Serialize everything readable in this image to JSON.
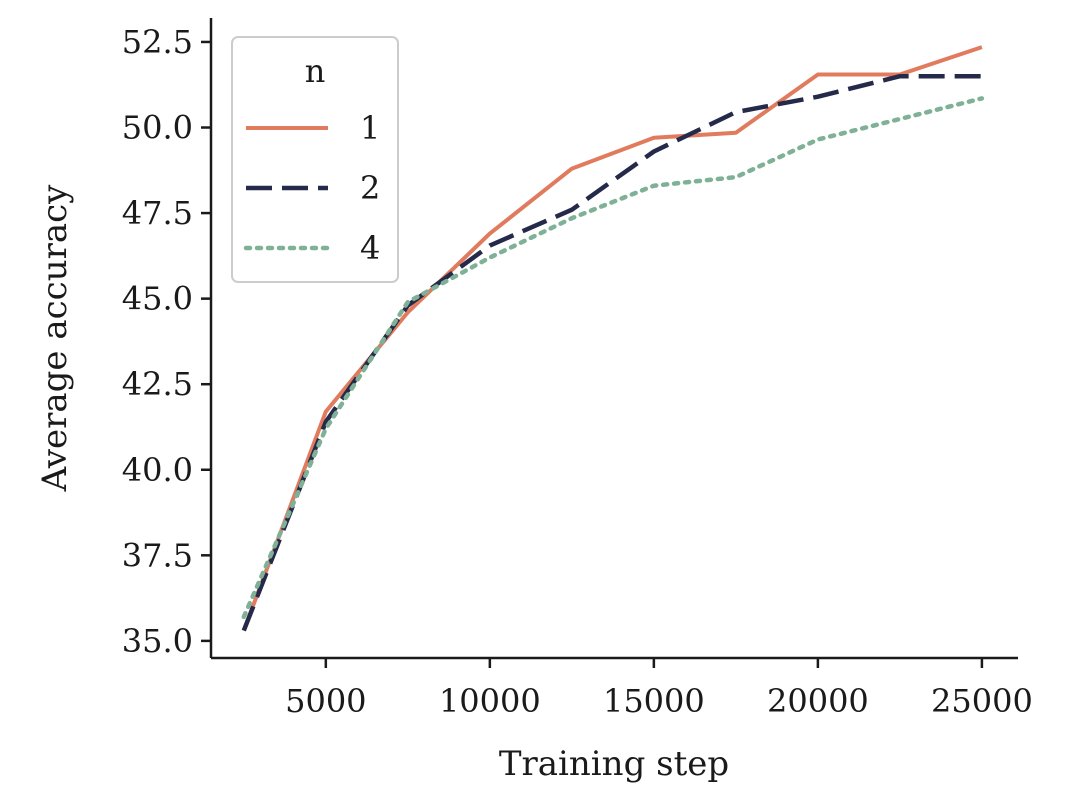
{
  "chart_data": {
    "type": "line",
    "title": "",
    "xlabel": "Training step",
    "ylabel": "Average accuracy",
    "xlim": [
      1500,
      26100
    ],
    "ylim": [
      34.5,
      53.2
    ],
    "x_ticks": [
      5000,
      10000,
      15000,
      20000,
      25000
    ],
    "x_tick_labels": [
      "5000",
      "10000",
      "15000",
      "20000",
      "25000"
    ],
    "y_ticks": [
      35.0,
      37.5,
      40.0,
      42.5,
      45.0,
      47.5,
      50.0,
      52.5
    ],
    "y_tick_labels": [
      "35.0",
      "37.5",
      "40.0",
      "42.5",
      "45.0",
      "47.5",
      "50.0",
      "52.5"
    ],
    "grid": false,
    "legend": {
      "title": "n",
      "placement": "top-left"
    },
    "series": [
      {
        "name": "1",
        "color": "#e07b5e",
        "style": "solid",
        "x": [
          2500,
          5000,
          7500,
          10000,
          12500,
          15000,
          17500,
          20000,
          22500,
          25000
        ],
        "y": [
          35.3,
          41.7,
          44.6,
          46.9,
          48.8,
          49.7,
          49.85,
          51.55,
          51.55,
          52.35
        ]
      },
      {
        "name": "2",
        "color": "#262a4a",
        "style": "dashed",
        "x": [
          2500,
          5000,
          7500,
          10000,
          12500,
          15000,
          17500,
          20000,
          22500,
          25000
        ],
        "y": [
          35.3,
          41.4,
          44.8,
          46.55,
          47.6,
          49.3,
          50.45,
          50.9,
          51.5,
          51.5
        ]
      },
      {
        "name": "4",
        "color": "#7fb196",
        "style": "dotted",
        "x": [
          2500,
          5000,
          7500,
          10000,
          12500,
          15000,
          17500,
          20000,
          22500,
          25000
        ],
        "y": [
          35.7,
          41.2,
          44.9,
          46.2,
          47.35,
          48.3,
          48.55,
          49.65,
          50.25,
          50.85
        ]
      }
    ]
  }
}
